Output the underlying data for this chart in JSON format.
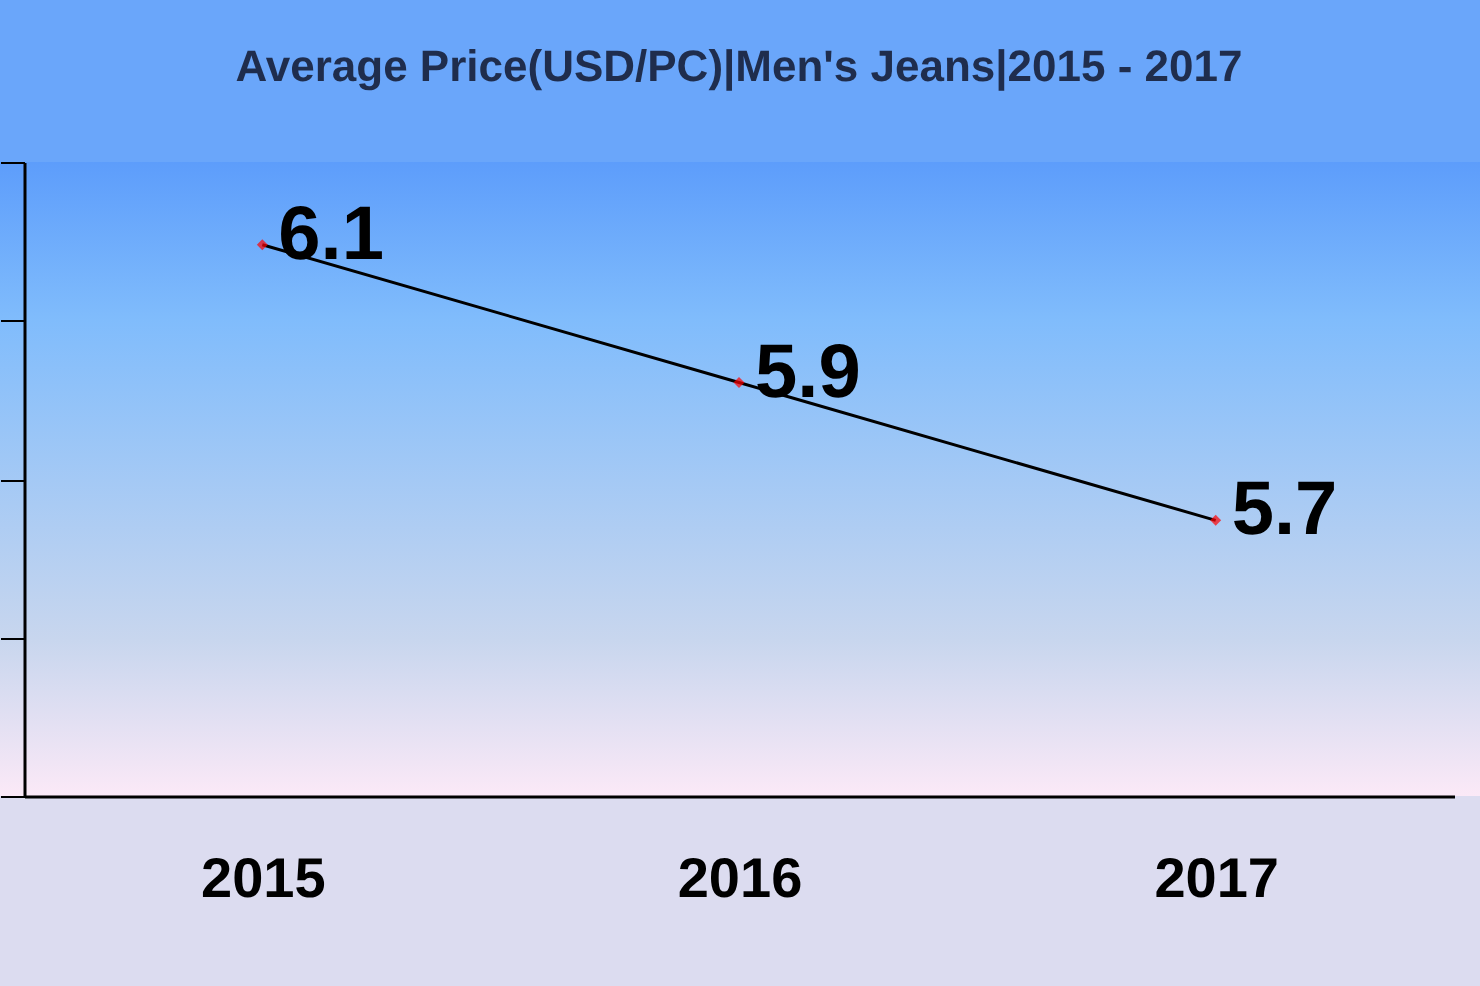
{
  "chart_data": {
    "type": "line",
    "title": "Average Price(USD/PC)|Men's Jeans|2015 - 2017",
    "categories": [
      "2015",
      "2016",
      "2017"
    ],
    "series": [
      {
        "color": "#000000",
        "values": [
          6.1,
          5.9,
          5.7
        ]
      }
    ],
    "ylim": [
      5.3,
      6.22
    ],
    "yticks": [
      {
        "value": 5.3,
        "label": null
      },
      {
        "value": 5.53,
        "label": null
      },
      {
        "value": 5.76,
        "label": null
      },
      {
        "value": 5.99,
        "label": null
      },
      {
        "value": 6.22,
        "label": null
      }
    ],
    "tick_labels": "x",
    "marker": "diamond",
    "data_labels": true
  }
}
